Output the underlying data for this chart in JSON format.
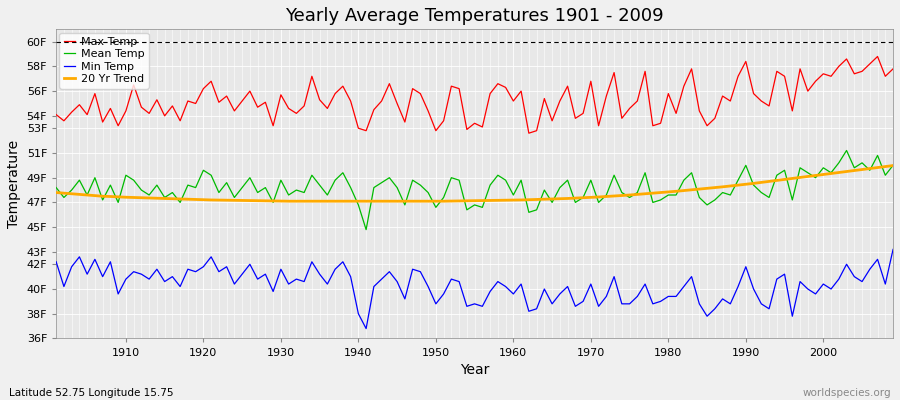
{
  "title": "Yearly Average Temperatures 1901 - 2009",
  "xlabel": "Year",
  "ylabel": "Temperature",
  "subtitle_left": "Latitude 52.75 Longitude 15.75",
  "subtitle_right": "worldspecies.org",
  "years": [
    1901,
    1902,
    1903,
    1904,
    1905,
    1906,
    1907,
    1908,
    1909,
    1910,
    1911,
    1912,
    1913,
    1914,
    1915,
    1916,
    1917,
    1918,
    1919,
    1920,
    1921,
    1922,
    1923,
    1924,
    1925,
    1926,
    1927,
    1928,
    1929,
    1930,
    1931,
    1932,
    1933,
    1934,
    1935,
    1936,
    1937,
    1938,
    1939,
    1940,
    1941,
    1942,
    1943,
    1944,
    1945,
    1946,
    1947,
    1948,
    1949,
    1950,
    1951,
    1952,
    1953,
    1954,
    1955,
    1956,
    1957,
    1958,
    1959,
    1960,
    1961,
    1962,
    1963,
    1964,
    1965,
    1966,
    1967,
    1968,
    1969,
    1970,
    1971,
    1972,
    1973,
    1974,
    1975,
    1976,
    1977,
    1978,
    1979,
    1980,
    1981,
    1982,
    1983,
    1984,
    1985,
    1986,
    1987,
    1988,
    1989,
    1990,
    1991,
    1992,
    1993,
    1994,
    1995,
    1996,
    1997,
    1998,
    1999,
    2000,
    2001,
    2002,
    2003,
    2004,
    2005,
    2006,
    2007,
    2008,
    2009
  ],
  "max_temp_f": [
    54.1,
    53.6,
    54.3,
    54.9,
    54.1,
    55.8,
    53.5,
    54.6,
    53.2,
    54.4,
    56.5,
    54.7,
    54.2,
    55.3,
    54.0,
    54.8,
    53.6,
    55.2,
    55.0,
    56.2,
    56.8,
    55.1,
    55.6,
    54.4,
    55.2,
    56.0,
    54.7,
    55.1,
    53.2,
    55.7,
    54.6,
    54.2,
    54.8,
    57.2,
    55.3,
    54.6,
    55.8,
    56.4,
    55.2,
    53.0,
    52.8,
    54.5,
    55.2,
    56.6,
    55.0,
    53.5,
    56.2,
    55.8,
    54.4,
    52.8,
    53.6,
    56.4,
    56.2,
    52.9,
    53.4,
    53.1,
    55.8,
    56.6,
    56.3,
    55.2,
    56.0,
    52.6,
    52.8,
    55.4,
    53.6,
    55.2,
    56.4,
    53.8,
    54.2,
    56.8,
    53.2,
    55.6,
    57.5,
    53.8,
    54.6,
    55.2,
    57.6,
    53.2,
    53.4,
    55.8,
    54.2,
    56.4,
    57.8,
    54.4,
    53.2,
    53.8,
    55.6,
    55.2,
    57.2,
    58.4,
    55.8,
    55.2,
    54.8,
    57.6,
    57.2,
    54.4,
    57.8,
    56.0,
    56.8,
    57.4,
    57.2,
    58.0,
    58.6,
    57.4,
    57.6,
    58.2,
    58.8,
    57.2,
    57.8
  ],
  "mean_temp_f": [
    48.2,
    47.4,
    48.0,
    48.8,
    47.6,
    49.0,
    47.2,
    48.4,
    47.0,
    49.2,
    48.8,
    48.0,
    47.6,
    48.4,
    47.4,
    47.8,
    47.0,
    48.4,
    48.2,
    49.6,
    49.2,
    47.8,
    48.6,
    47.4,
    48.2,
    49.0,
    47.8,
    48.2,
    47.0,
    48.8,
    47.6,
    48.0,
    47.8,
    49.2,
    48.4,
    47.6,
    48.8,
    49.4,
    48.2,
    46.8,
    44.8,
    48.2,
    48.6,
    49.0,
    48.2,
    46.8,
    48.8,
    48.4,
    47.8,
    46.6,
    47.4,
    49.0,
    48.8,
    46.4,
    46.8,
    46.6,
    48.4,
    49.2,
    48.8,
    47.6,
    48.8,
    46.2,
    46.4,
    48.0,
    47.0,
    48.2,
    48.8,
    47.0,
    47.4,
    48.8,
    47.0,
    47.6,
    49.2,
    47.8,
    47.4,
    47.8,
    49.4,
    47.0,
    47.2,
    47.6,
    47.6,
    48.8,
    49.4,
    47.4,
    46.8,
    47.2,
    47.8,
    47.6,
    48.8,
    50.0,
    48.4,
    47.8,
    47.4,
    49.2,
    49.6,
    47.2,
    49.8,
    49.4,
    49.0,
    49.8,
    49.4,
    50.2,
    51.2,
    49.8,
    50.2,
    49.6,
    50.8,
    49.2,
    50.0
  ],
  "trend_temp_f": [
    47.8,
    47.75,
    47.7,
    47.65,
    47.6,
    47.55,
    47.5,
    47.48,
    47.45,
    47.42,
    47.4,
    47.38,
    47.36,
    47.34,
    47.32,
    47.3,
    47.28,
    47.26,
    47.24,
    47.22,
    47.2,
    47.19,
    47.18,
    47.17,
    47.16,
    47.15,
    47.14,
    47.13,
    47.12,
    47.11,
    47.1,
    47.1,
    47.1,
    47.1,
    47.1,
    47.1,
    47.1,
    47.1,
    47.1,
    47.1,
    47.1,
    47.1,
    47.1,
    47.1,
    47.1,
    47.1,
    47.1,
    47.1,
    47.1,
    47.1,
    47.1,
    47.11,
    47.12,
    47.13,
    47.14,
    47.15,
    47.16,
    47.17,
    47.18,
    47.19,
    47.2,
    47.22,
    47.24,
    47.26,
    47.28,
    47.3,
    47.32,
    47.35,
    47.38,
    47.41,
    47.44,
    47.48,
    47.52,
    47.56,
    47.6,
    47.65,
    47.7,
    47.75,
    47.8,
    47.85,
    47.9,
    47.96,
    48.02,
    48.08,
    48.14,
    48.2,
    48.26,
    48.33,
    48.4,
    48.47,
    48.54,
    48.62,
    48.7,
    48.78,
    48.86,
    48.94,
    49.02,
    49.1,
    49.18,
    49.26,
    49.34,
    49.42,
    49.5,
    49.58,
    49.66,
    49.74,
    49.82,
    49.9,
    49.98
  ],
  "min_temp_f": [
    42.2,
    40.2,
    41.8,
    42.6,
    41.2,
    42.4,
    41.0,
    42.2,
    39.6,
    40.8,
    41.4,
    41.2,
    40.8,
    41.6,
    40.6,
    41.0,
    40.2,
    41.6,
    41.4,
    41.8,
    42.6,
    41.4,
    41.8,
    40.4,
    41.2,
    42.0,
    40.8,
    41.2,
    39.8,
    41.6,
    40.4,
    40.8,
    40.6,
    42.2,
    41.2,
    40.4,
    41.6,
    42.2,
    41.0,
    38.0,
    36.8,
    40.2,
    40.8,
    41.4,
    40.6,
    39.2,
    41.6,
    41.4,
    40.2,
    38.8,
    39.6,
    40.8,
    40.6,
    38.6,
    38.8,
    38.6,
    39.8,
    40.6,
    40.2,
    39.6,
    40.4,
    38.2,
    38.4,
    40.0,
    38.8,
    39.6,
    40.2,
    38.6,
    39.0,
    40.4,
    38.6,
    39.4,
    41.0,
    38.8,
    38.8,
    39.4,
    40.4,
    38.8,
    39.0,
    39.4,
    39.4,
    40.2,
    41.0,
    38.8,
    37.8,
    38.4,
    39.2,
    38.8,
    40.2,
    41.8,
    40.0,
    38.8,
    38.4,
    40.8,
    41.2,
    37.8,
    40.6,
    40.0,
    39.6,
    40.4,
    40.0,
    40.8,
    42.0,
    41.0,
    40.6,
    41.6,
    42.4,
    40.4,
    43.2
  ],
  "ylim": [
    36,
    61
  ],
  "ytick_vals": [
    36,
    38,
    40,
    42,
    43,
    45,
    47,
    49,
    51,
    53,
    54,
    56,
    58,
    60
  ],
  "ytick_labels": [
    "36F",
    "38F",
    "40F",
    "42F",
    "43F",
    "45F",
    "47F",
    "49F",
    "51F",
    "53F",
    "54F",
    "56F",
    "58F",
    "60F"
  ],
  "bg_color": "#f0f0f0",
  "plot_bg_color": "#e8e8e8",
  "grid_color": "#ffffff",
  "max_color": "#ff0000",
  "mean_color": "#00bb00",
  "min_color": "#0000ff",
  "trend_color": "#ffaa00",
  "dashed_line_y": 60,
  "title_fontsize": 13,
  "axis_label_fontsize": 10,
  "tick_fontsize": 8,
  "legend_fontsize": 8
}
